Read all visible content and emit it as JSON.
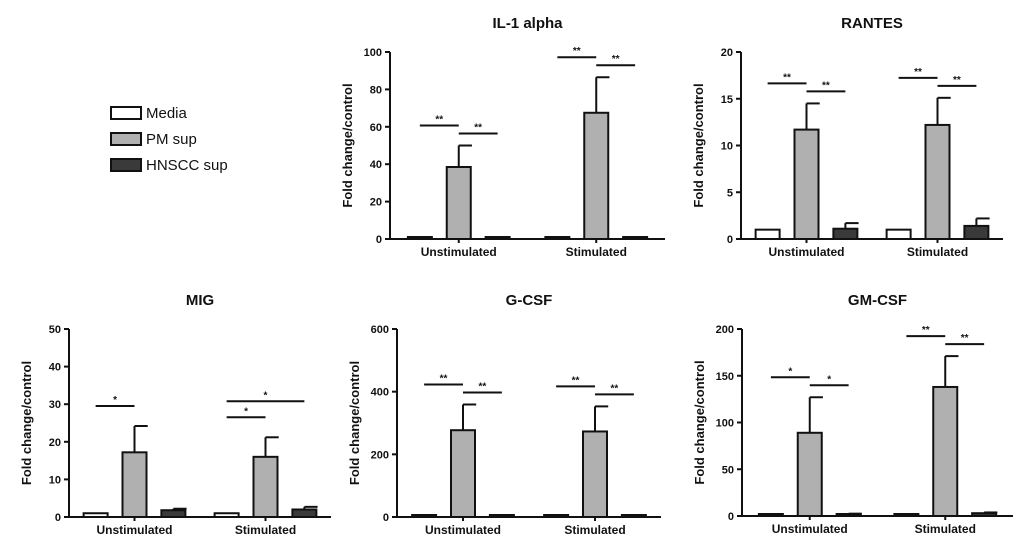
{
  "legend": {
    "items": [
      {
        "label": "Media",
        "color": "#ffffff"
      },
      {
        "label": "PM sup",
        "color": "#b0b0b0"
      },
      {
        "label": "HNSCC sup",
        "color": "#3a3a3a"
      }
    ]
  },
  "chart_data": [
    {
      "type": "bar",
      "title": "IL-1 alpha",
      "ylabel": "Fold change/control",
      "xlabel": "",
      "categories": [
        "Unstimulated",
        "Stimulated"
      ],
      "ylim": [
        0,
        100
      ],
      "yticks": [
        0,
        20,
        40,
        60,
        80,
        100
      ],
      "series": [
        {
          "name": "Media",
          "values": [
            1,
            1
          ],
          "errors": [
            0,
            0
          ]
        },
        {
          "name": "PM sup",
          "values": [
            38.5,
            67.5
          ],
          "errors": [
            11.5,
            19
          ]
        },
        {
          "name": "HNSCC sup",
          "values": [
            1,
            1
          ],
          "errors": [
            0,
            0
          ]
        }
      ],
      "significance": [
        {
          "group": 0,
          "from": 0,
          "to": 1,
          "label": "**"
        },
        {
          "group": 0,
          "from": 1,
          "to": 2,
          "label": "**"
        },
        {
          "group": 1,
          "from": 0,
          "to": 1,
          "label": "**"
        },
        {
          "group": 1,
          "from": 1,
          "to": 2,
          "label": "**"
        }
      ]
    },
    {
      "type": "bar",
      "title": "RANTES",
      "ylabel": "Fold change/control",
      "xlabel": "",
      "categories": [
        "Unstimulated",
        "Stimulated"
      ],
      "ylim": [
        0,
        20
      ],
      "yticks": [
        0,
        5,
        10,
        15,
        20
      ],
      "series": [
        {
          "name": "Media",
          "values": [
            1,
            1
          ],
          "errors": [
            0,
            0
          ]
        },
        {
          "name": "PM sup",
          "values": [
            11.7,
            12.2
          ],
          "errors": [
            2.8,
            2.9
          ]
        },
        {
          "name": "HNSCC sup",
          "values": [
            1.1,
            1.4
          ],
          "errors": [
            0.6,
            0.8
          ]
        }
      ],
      "significance": [
        {
          "group": 0,
          "from": 0,
          "to": 1,
          "label": "**"
        },
        {
          "group": 0,
          "from": 1,
          "to": 2,
          "label": "**"
        },
        {
          "group": 1,
          "from": 0,
          "to": 1,
          "label": "**"
        },
        {
          "group": 1,
          "from": 1,
          "to": 2,
          "label": "**"
        }
      ]
    },
    {
      "type": "bar",
      "title": "MIG",
      "ylabel": "Fold change/control",
      "xlabel": "",
      "categories": [
        "Unstimulated",
        "Stimulated"
      ],
      "ylim": [
        0,
        50
      ],
      "yticks": [
        0,
        10,
        20,
        30,
        40,
        50
      ],
      "series": [
        {
          "name": "Media",
          "values": [
            1,
            1
          ],
          "errors": [
            0,
            0
          ]
        },
        {
          "name": "PM sup",
          "values": [
            17.2,
            16
          ],
          "errors": [
            7,
            5.2
          ]
        },
        {
          "name": "HNSCC sup",
          "values": [
            1.8,
            2
          ],
          "errors": [
            0.4,
            0.7
          ]
        }
      ],
      "significance": [
        {
          "group": 0,
          "from": 0,
          "to": 1,
          "label": "*"
        },
        {
          "group": 1,
          "from": 0,
          "to": 1,
          "label": "*"
        },
        {
          "group": 1,
          "from": 0,
          "to": 2,
          "label": "*"
        }
      ]
    },
    {
      "type": "bar",
      "title": "G-CSF",
      "ylabel": "Fold change/control",
      "xlabel": "",
      "categories": [
        "Unstimulated",
        "Stimulated"
      ],
      "ylim": [
        0,
        600
      ],
      "yticks": [
        0,
        200,
        400,
        600
      ],
      "series": [
        {
          "name": "Media",
          "values": [
            1,
            1
          ],
          "errors": [
            0,
            0
          ]
        },
        {
          "name": "PM sup",
          "values": [
            277,
            273
          ],
          "errors": [
            82,
            80
          ]
        },
        {
          "name": "HNSCC sup",
          "values": [
            1,
            1
          ],
          "errors": [
            0,
            0
          ]
        }
      ],
      "significance": [
        {
          "group": 0,
          "from": 0,
          "to": 1,
          "label": "**"
        },
        {
          "group": 0,
          "from": 1,
          "to": 2,
          "label": "**"
        },
        {
          "group": 1,
          "from": 0,
          "to": 1,
          "label": "**"
        },
        {
          "group": 1,
          "from": 1,
          "to": 2,
          "label": "**"
        }
      ]
    },
    {
      "type": "bar",
      "title": "GM-CSF",
      "ylabel": "Fold change/control",
      "xlabel": "",
      "categories": [
        "Unstimulated",
        "Stimulated"
      ],
      "ylim": [
        0,
        200
      ],
      "yticks": [
        0,
        50,
        100,
        150,
        200
      ],
      "series": [
        {
          "name": "Media",
          "values": [
            1,
            1
          ],
          "errors": [
            0,
            0
          ]
        },
        {
          "name": "PM sup",
          "values": [
            89,
            138
          ],
          "errors": [
            38,
            33
          ]
        },
        {
          "name": "HNSCC sup",
          "values": [
            2,
            3
          ],
          "errors": [
            0.5,
            0.8
          ]
        }
      ],
      "significance": [
        {
          "group": 0,
          "from": 0,
          "to": 1,
          "label": "*"
        },
        {
          "group": 0,
          "from": 1,
          "to": 2,
          "label": "*"
        },
        {
          "group": 1,
          "from": 0,
          "to": 1,
          "label": "**"
        },
        {
          "group": 1,
          "from": 1,
          "to": 2,
          "label": "**"
        }
      ]
    }
  ]
}
